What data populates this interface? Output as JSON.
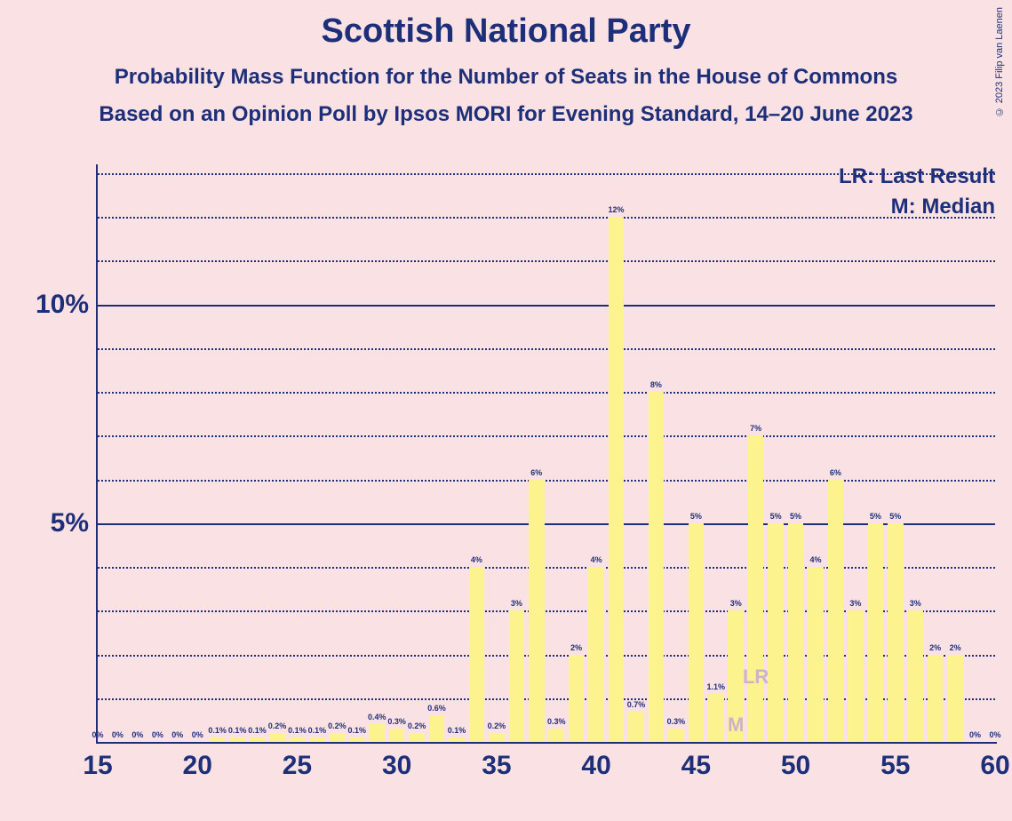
{
  "title": "Scottish National Party",
  "subtitle1": "Probability Mass Function for the Number of Seats in the House of Commons",
  "subtitle2": "Based on an Opinion Poll by Ipsos MORI for Evening Standard, 14–20 June 2023",
  "copyright": "© 2023 Filip van Laenen",
  "legend_lr": "LR: Last Result",
  "legend_m": "M: Median",
  "chart": {
    "type": "bar",
    "background_color": "#fae2e4",
    "bar_color": "#fcf28e",
    "text_color": "#1e2f7a",
    "grid_color": "#1e2f7a",
    "title_fontsize": 38,
    "subtitle_fontsize": 24,
    "axis_label_fontsize": 30,
    "bar_label_fontsize": 9,
    "ylim": [
      0,
      0.13
    ],
    "y_major_ticks": [
      0.05,
      0.1
    ],
    "y_major_labels": [
      "5%",
      "10%"
    ],
    "y_minor_step": 0.01,
    "xlim": [
      15,
      60
    ],
    "x_ticks": [
      15,
      20,
      25,
      30,
      35,
      40,
      45,
      50,
      55,
      60
    ],
    "x_labels": [
      "15",
      "20",
      "25",
      "30",
      "35",
      "40",
      "45",
      "50",
      "55",
      "60"
    ],
    "bar_width_ratio": 0.78,
    "last_result_seat": 48,
    "median_seat": 47,
    "seats": [
      15,
      16,
      17,
      18,
      19,
      20,
      21,
      22,
      23,
      24,
      25,
      26,
      27,
      28,
      29,
      30,
      31,
      32,
      33,
      34,
      35,
      36,
      37,
      38,
      39,
      40,
      41,
      42,
      43,
      44,
      45,
      46,
      47,
      48,
      49,
      50,
      51,
      52,
      53,
      54,
      55,
      56,
      57,
      58,
      59,
      60
    ],
    "values": [
      0,
      0,
      0,
      0,
      0,
      0,
      0.001,
      0.001,
      0.001,
      0.002,
      0.001,
      0.001,
      0.002,
      0.001,
      0.004,
      0.003,
      0.002,
      0.006,
      0.001,
      0.04,
      0.002,
      0.03,
      0.06,
      0.003,
      0.02,
      0.04,
      0.12,
      0.007,
      0.08,
      0.003,
      0.05,
      0.011,
      0.03,
      0.07,
      0.05,
      0.05,
      0.04,
      0.06,
      0.03,
      0.05,
      0.05,
      0.03,
      0.02,
      0.02,
      0,
      0
    ],
    "labels": [
      "0%",
      "0%",
      "0%",
      "0%",
      "0%",
      "0%",
      "0.1%",
      "0.1%",
      "0.1%",
      "0.2%",
      "0.1%",
      "0.1%",
      "0.2%",
      "0.1%",
      "0.4%",
      "0.3%",
      "0.2%",
      "0.6%",
      "0.1%",
      "4%",
      "0.2%",
      "3%",
      "6%",
      "0.3%",
      "2%",
      "4%",
      "12%",
      "0.7%",
      "8%",
      "0.3%",
      "5%",
      "1.1%",
      "3%",
      "7%",
      "5%",
      "5%",
      "4%",
      "6%",
      "3%",
      "5%",
      "5%",
      "3%",
      "2%",
      "2%",
      "0%",
      "0%"
    ]
  }
}
